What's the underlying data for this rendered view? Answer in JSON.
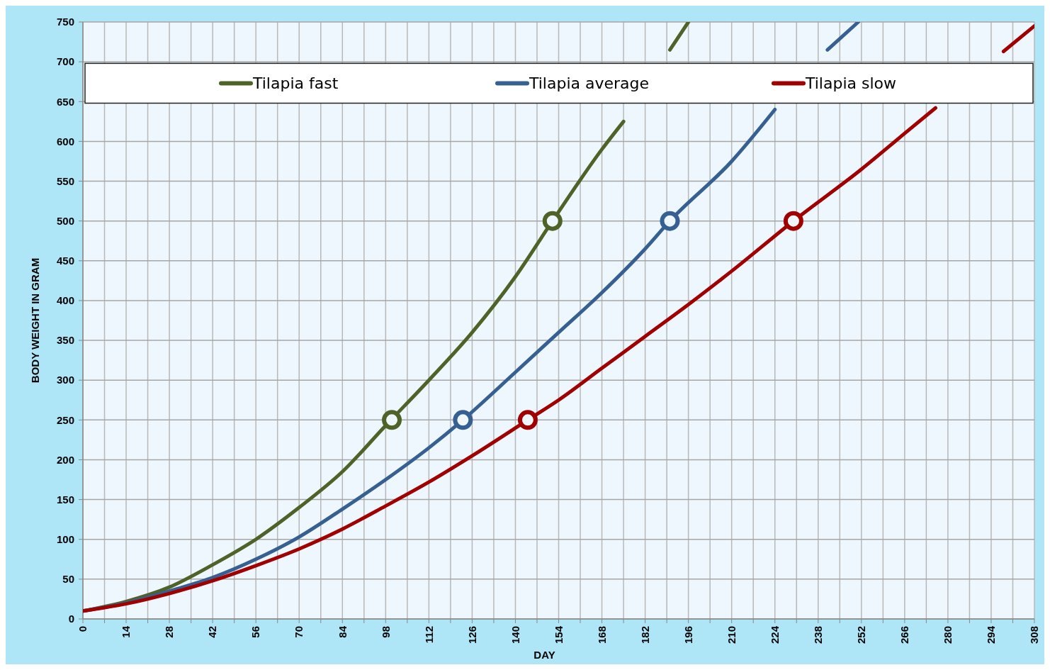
{
  "chart_data": {
    "type": "line",
    "xlabel": "DAY",
    "ylabel": "BODY WEIGHT IN GRAM",
    "xlim": [
      0,
      308
    ],
    "ylim": [
      0,
      750
    ],
    "xticks": [
      0,
      {
        "value": 7,
        "label": null
      },
      14,
      {
        "value": 21,
        "label": null
      },
      28,
      {
        "value": 35,
        "label": null
      },
      42,
      {
        "value": 49,
        "label": null
      },
      56,
      {
        "value": 63,
        "label": null
      },
      70,
      {
        "value": 77,
        "label": null
      },
      84,
      {
        "value": 91,
        "label": null
      },
      98,
      {
        "value": 105,
        "label": null
      },
      112,
      {
        "value": 119,
        "label": null
      },
      126,
      {
        "value": 133,
        "label": null
      },
      140,
      {
        "value": 147,
        "label": null
      },
      154,
      {
        "value": 161,
        "label": null
      },
      168,
      {
        "value": 175,
        "label": null
      },
      182,
      {
        "value": 189,
        "label": null
      },
      196,
      {
        "value": 203,
        "label": null
      },
      210,
      {
        "value": 217,
        "label": null
      },
      224,
      {
        "value": 231,
        "label": null
      },
      238,
      {
        "value": 245,
        "label": null
      },
      252,
      {
        "value": 259,
        "label": null
      },
      266,
      {
        "value": 273,
        "label": null
      },
      280,
      {
        "value": 287,
        "label": null
      },
      294,
      {
        "value": 301,
        "label": null
      },
      308
    ],
    "yticks": [
      0,
      50,
      100,
      150,
      200,
      250,
      300,
      350,
      400,
      450,
      500,
      550,
      600,
      650,
      700,
      750
    ],
    "grid": true,
    "legend": "top",
    "line_style": "solid",
    "marker": "none",
    "series": [
      {
        "name": "Tilapia fast",
        "color": "#4f6228",
        "x": [
          0,
          14,
          28,
          42,
          56,
          70,
          84,
          98,
          112,
          126,
          140,
          152,
          168,
          175,
          182,
          190,
          196
        ],
        "values": [
          10,
          22,
          40,
          68,
          100,
          140,
          185,
          243,
          300,
          360,
          430,
          500,
          590,
          625,
          null,
          715,
          750
        ]
      },
      {
        "name": "Tilapia average",
        "color": "#376092",
        "x": [
          0,
          14,
          28,
          42,
          56,
          70,
          84,
          98,
          112,
          123,
          140,
          154,
          168,
          182,
          190,
          210,
          224,
          232,
          241,
          251
        ],
        "values": [
          10,
          20,
          35,
          52,
          75,
          103,
          138,
          175,
          215,
          250,
          310,
          360,
          410,
          465,
          500,
          575,
          640,
          null,
          715,
          750
        ]
      },
      {
        "name": "Tilapia slow",
        "color": "#a00000",
        "x": [
          0,
          14,
          28,
          42,
          56,
          70,
          84,
          98,
          112,
          126,
          144,
          154,
          168,
          182,
          196,
          210,
          230,
          252,
          266,
          276,
          287,
          298,
          308
        ],
        "values": [
          10,
          19,
          32,
          48,
          67,
          88,
          113,
          142,
          172,
          205,
          250,
          275,
          315,
          355,
          395,
          437,
          500,
          565,
          610,
          642,
          null,
          713,
          745
        ]
      },
      {
        "type": "scatter",
        "marker": "circle",
        "color": "#4f6228",
        "x": [
          100,
          152
        ],
        "values": [
          250,
          500
        ]
      },
      {
        "type": "scatter",
        "marker": "circle",
        "color": "#376092",
        "x": [
          123,
          190
        ],
        "values": [
          250,
          500
        ]
      },
      {
        "type": "scatter",
        "marker": "circle",
        "color": "#a00000",
        "x": [
          144,
          230
        ],
        "values": [
          250,
          500
        ]
      }
    ]
  }
}
